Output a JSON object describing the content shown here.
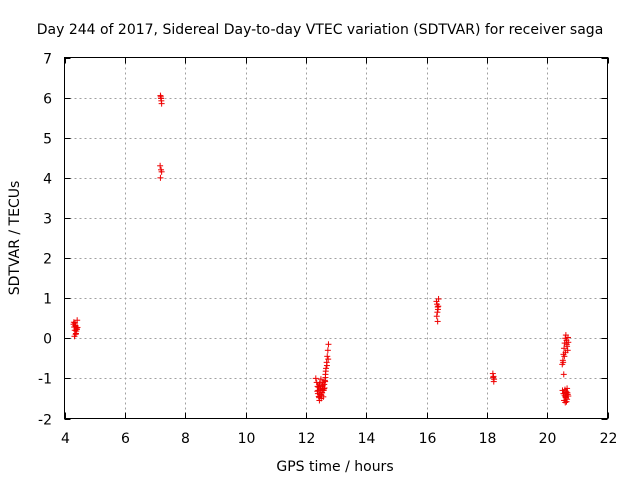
{
  "chart_data": {
    "type": "scatter",
    "title": "Day 244 of 2017, Sidereal Day-to-day VTEC variation (SDTVAR) for receiver saga",
    "xlabel": "GPS time / hours",
    "ylabel": "SDTVAR / TECUs",
    "xlim": [
      4,
      22
    ],
    "ylim": [
      -2,
      7
    ],
    "xticks": [
      4,
      6,
      8,
      10,
      12,
      14,
      16,
      18,
      20,
      22
    ],
    "yticks": [
      -2,
      -1,
      0,
      1,
      2,
      3,
      4,
      5,
      6,
      7
    ],
    "grid": true,
    "marker": "+",
    "color": "#ee0000",
    "series": [
      {
        "name": "SDTVAR",
        "x": [
          4.3,
          4.32,
          4.34,
          4.35,
          4.37,
          4.38,
          4.4,
          4.42,
          4.33,
          4.36,
          4.39,
          4.41,
          4.31,
          4.37,
          4.43,
          7.18,
          7.2,
          7.22,
          7.19,
          7.21,
          7.17,
          7.2,
          7.22,
          7.18,
          12.33,
          12.36,
          12.39,
          12.41,
          12.43,
          12.45,
          12.47,
          12.49,
          12.51,
          12.53,
          12.55,
          12.57,
          12.59,
          12.61,
          12.63,
          12.65,
          12.67,
          12.69,
          12.71,
          12.73,
          12.75,
          12.4,
          12.44,
          12.48,
          12.52,
          12.56,
          12.6,
          12.64,
          12.38,
          12.42,
          12.46,
          12.5,
          12.54,
          12.58,
          12.62,
          12.66,
          12.7,
          12.74,
          12.45,
          12.55,
          12.65,
          16.33,
          16.35,
          16.37,
          16.38,
          16.4,
          16.36,
          16.34,
          16.39,
          16.37,
          18.2,
          18.22,
          18.24,
          18.23,
          18.21,
          20.5,
          20.52,
          20.54,
          20.56,
          20.58,
          20.6,
          20.62,
          20.64,
          20.66,
          20.68,
          20.7,
          20.53,
          20.57,
          20.61,
          20.65,
          20.69,
          20.55,
          20.59,
          20.63,
          20.67,
          20.51,
          20.54,
          20.58,
          20.62,
          20.66,
          20.7,
          20.56,
          20.6,
          20.64,
          20.68,
          20.6,
          20.64,
          20.66
        ],
        "y": [
          0.35,
          0.28,
          0.2,
          0.38,
          0.3,
          0.12,
          0.25,
          0.45,
          0.05,
          0.32,
          0.18,
          0.22,
          0.4,
          0.1,
          0.27,
          6.05,
          5.98,
          5.85,
          6.02,
          5.92,
          4.3,
          4.2,
          4.15,
          4.0,
          -1.0,
          -1.1,
          -1.2,
          -1.3,
          -1.45,
          -1.55,
          -1.4,
          -1.25,
          -1.5,
          -1.35,
          -1.2,
          -1.1,
          -1.3,
          -1.15,
          -1.05,
          -0.9,
          -0.75,
          -0.6,
          -0.45,
          -0.3,
          -0.15,
          -1.38,
          -1.48,
          -1.28,
          -1.42,
          -1.18,
          -1.26,
          -1.08,
          -1.32,
          -1.22,
          -1.12,
          -1.02,
          -1.36,
          -1.46,
          -1.24,
          -0.82,
          -0.68,
          -0.52,
          -1.16,
          -1.28,
          -0.98,
          0.92,
          0.85,
          0.78,
          0.72,
          0.98,
          0.65,
          0.55,
          0.8,
          0.42,
          -0.88,
          -0.95,
          -1.02,
          -1.08,
          -0.98,
          -0.65,
          -0.55,
          -0.4,
          -0.25,
          -0.12,
          0.0,
          0.08,
          -0.05,
          -0.2,
          -0.3,
          -0.1,
          -0.6,
          -0.45,
          -0.35,
          -0.15,
          0.02,
          -0.9,
          -1.28,
          -1.32,
          -1.36,
          -1.3,
          -1.38,
          -1.42,
          -1.48,
          -1.52,
          -1.44,
          -1.55,
          -1.6,
          -1.35,
          -1.4,
          -1.46,
          -1.58,
          -1.25
        ]
      }
    ]
  }
}
